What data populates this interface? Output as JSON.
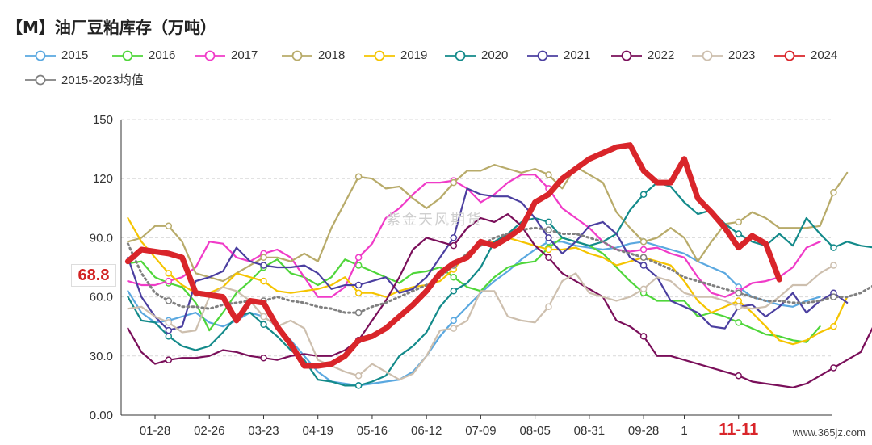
{
  "title": "【M】油厂豆粕库存（万吨）",
  "watermark": "www.365jz.com",
  "center_watermark": "紫金天风期货",
  "last_value_label": "68.8",
  "highlight_x_label": "11-11",
  "colors": {
    "2015": "#5aa8e0",
    "2016": "#4fd63a",
    "2017": "#f03bc8",
    "2018": "#b8ab6a",
    "2019": "#f5c400",
    "2020": "#138a8a",
    "2021": "#4b3fa0",
    "2022": "#7a0f5a",
    "2023": "#cdbfae",
    "2024": "#d9252a",
    "avg": "#808080"
  },
  "chart_data": {
    "type": "line",
    "title": "【M】油厂豆粕库存（万吨）",
    "xlabel": "",
    "ylabel": "",
    "ylim": [
      0,
      150
    ],
    "yticks": [
      "0.00",
      "30.0",
      "60.0",
      "90.0",
      "120",
      "150"
    ],
    "xtick_labels": [
      "01-28",
      "02-26",
      "03-23",
      "04-19",
      "05-16",
      "06-12",
      "07-09",
      "08-05",
      "08-31",
      "09-28",
      "1",
      "11-11"
    ],
    "x_points": 52,
    "grid": "horizontal-dashed",
    "legend_position": "top",
    "series": [
      {
        "name": "2015",
        "key": "2015",
        "values": [
          63,
          52,
          47,
          48,
          50,
          52,
          47,
          45,
          48,
          52,
          50,
          45,
          38,
          30,
          22,
          17,
          16,
          15,
          16,
          17,
          18,
          22,
          30,
          40,
          48,
          55,
          62,
          68,
          73,
          79,
          84,
          88,
          88,
          86,
          85,
          84,
          85,
          87,
          88,
          86,
          84,
          82,
          78,
          75,
          72,
          65,
          60,
          58,
          56,
          55,
          58,
          60
        ]
      },
      {
        "name": "2016",
        "key": "2016",
        "values": [
          77,
          78,
          70,
          67,
          65,
          57,
          43,
          52,
          62,
          68,
          75,
          79,
          72,
          70,
          66,
          70,
          79,
          76,
          73,
          70,
          67,
          72,
          73,
          75,
          70,
          65,
          63,
          70,
          75,
          77,
          78,
          85,
          90,
          88,
          86,
          82,
          75,
          68,
          62,
          58,
          58,
          58,
          50,
          52,
          50,
          47,
          44,
          41,
          40,
          38,
          37,
          45
        ]
      },
      {
        "name": "2017",
        "key": "2017",
        "values": [
          68,
          66,
          66,
          68,
          70,
          75,
          88,
          87,
          80,
          78,
          82,
          84,
          80,
          70,
          60,
          60,
          65,
          80,
          87,
          100,
          105,
          112,
          118,
          118,
          119,
          115,
          108,
          112,
          118,
          122,
          122,
          115,
          105,
          100,
          95,
          88,
          84,
          83,
          84,
          85,
          82,
          80,
          70,
          62,
          60,
          63,
          67,
          68,
          70,
          75,
          85,
          88
        ]
      },
      {
        "name": "2018",
        "key": "2018",
        "values": [
          88,
          90,
          96,
          96,
          88,
          72,
          70,
          68,
          72,
          76,
          80,
          80,
          78,
          82,
          78,
          95,
          108,
          121,
          120,
          115,
          116,
          110,
          105,
          110,
          118,
          124,
          124,
          127,
          125,
          123,
          125,
          122,
          115,
          126,
          122,
          118,
          103,
          95,
          88,
          90,
          95,
          90,
          78,
          88,
          97,
          98,
          103,
          100,
          95,
          95,
          95,
          96,
          113,
          123
        ]
      },
      {
        "name": "2019",
        "key": "2019",
        "values": [
          100,
          88,
          80,
          72,
          66,
          62,
          62,
          65,
          72,
          70,
          68,
          63,
          62,
          63,
          64,
          66,
          70,
          62,
          62,
          60,
          63,
          65,
          66,
          68,
          74,
          82,
          86,
          88,
          90,
          88,
          86,
          84,
          84,
          85,
          82,
          80,
          76,
          78,
          80,
          78,
          76,
          68,
          58,
          52,
          55,
          58,
          52,
          45,
          38,
          36,
          38,
          42,
          45,
          60
        ]
      },
      {
        "name": "2020",
        "key": "2020",
        "values": [
          60,
          48,
          47,
          40,
          35,
          33,
          35,
          42,
          50,
          52,
          46,
          40,
          33,
          28,
          18,
          17,
          15,
          15,
          17,
          20,
          30,
          35,
          42,
          55,
          63,
          67,
          75,
          88,
          92,
          98,
          100,
          98,
          90,
          88,
          86,
          88,
          92,
          104,
          112,
          118,
          116,
          108,
          102,
          104,
          97,
          92,
          88,
          86,
          92,
          86,
          100,
          92,
          85,
          88,
          86,
          85,
          88
        ]
      },
      {
        "name": "2021",
        "key": "2021",
        "values": [
          80,
          60,
          50,
          43,
          45,
          68,
          70,
          73,
          85,
          78,
          76,
          75,
          75,
          76,
          72,
          64,
          66,
          66,
          68,
          70,
          62,
          64,
          70,
          80,
          90,
          115,
          112,
          111,
          111,
          108,
          100,
          90,
          82,
          88,
          96,
          98,
          92,
          80,
          76,
          70,
          58,
          55,
          52,
          45,
          44,
          55,
          56,
          50,
          55,
          62,
          52,
          58,
          62,
          57
        ]
      },
      {
        "name": "2022",
        "key": "2022",
        "values": [
          44,
          32,
          26,
          28,
          29,
          29,
          30,
          33,
          32,
          30,
          29,
          28,
          30,
          31,
          30,
          30,
          33,
          38,
          48,
          58,
          70,
          84,
          90,
          88,
          86,
          95,
          100,
          98,
          102,
          96,
          86,
          80,
          72,
          68,
          64,
          60,
          48,
          45,
          40,
          30,
          30,
          28,
          26,
          24,
          22,
          20,
          17,
          16,
          15,
          14,
          16,
          20,
          24,
          28,
          32,
          46
        ]
      },
      {
        "name": "2023",
        "key": "2023",
        "values": [
          54,
          55,
          50,
          47,
          42,
          43,
          60,
          65,
          63,
          58,
          50,
          45,
          48,
          44,
          28,
          25,
          22,
          20,
          26,
          22,
          18,
          21,
          30,
          43,
          44,
          48,
          63,
          63,
          50,
          48,
          47,
          55,
          68,
          72,
          62,
          60,
          58,
          60,
          64,
          70,
          68,
          62,
          60,
          60,
          58,
          55,
          54,
          55,
          60,
          66,
          66,
          72,
          76
        ]
      },
      {
        "name": "2024",
        "key": "2024",
        "values": [
          78,
          84,
          83,
          82,
          80,
          62,
          61,
          60,
          48,
          58,
          57,
          45,
          36,
          25,
          25,
          26,
          30,
          38,
          40,
          44,
          50,
          56,
          63,
          72,
          77,
          80,
          88,
          86,
          90,
          95,
          108,
          112,
          120,
          125,
          130,
          133,
          136,
          137,
          124,
          118,
          118,
          130,
          110,
          103,
          95,
          85,
          91,
          87,
          68.8
        ]
      },
      {
        "name": "2015-2023均值",
        "key": "avg",
        "values": [
          87,
          72,
          62,
          58,
          55,
          55,
          54,
          56,
          57,
          58,
          58,
          60,
          58,
          57,
          55,
          54,
          52,
          52,
          55,
          57,
          60,
          63,
          66,
          70,
          76,
          82,
          86,
          90,
          92,
          94,
          95,
          94,
          92,
          92,
          90,
          88,
          84,
          82,
          80,
          77,
          74,
          70,
          68,
          66,
          64,
          62,
          60,
          58,
          58,
          57,
          57,
          58,
          60,
          60,
          62,
          66,
          74
        ]
      }
    ]
  }
}
